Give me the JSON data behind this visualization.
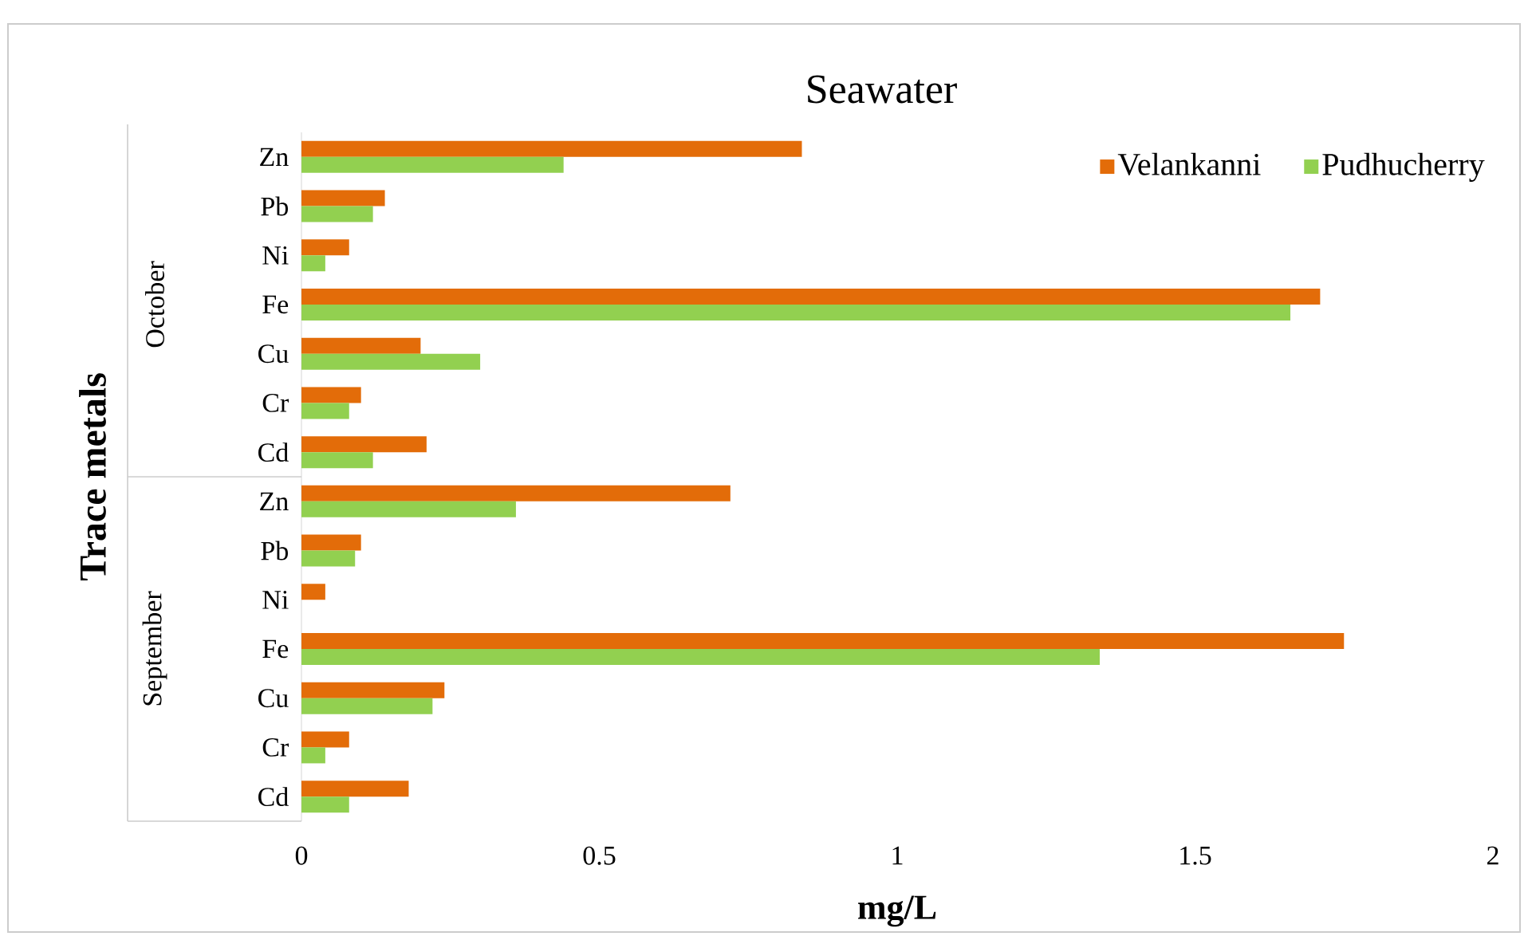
{
  "chart_data": {
    "type": "bar",
    "orientation": "horizontal",
    "title": "Seawater",
    "xlabel": "mg/L",
    "ylabel": "Trace metals",
    "categories": [
      "Zn",
      "Pb",
      "Ni",
      "Fe",
      "Cu",
      "Cr",
      "Cd",
      "Zn",
      "Pb",
      "Ni",
      "Fe",
      "Cu",
      "Cr",
      "Cd"
    ],
    "annotations": [
      "October",
      "September"
    ],
    "series": [
      {
        "name": "Velankanni",
        "color": "#e36c09",
        "values": [
          0.84,
          0.14,
          0.08,
          1.71,
          0.2,
          0.1,
          0.21,
          0.72,
          0.1,
          0.04,
          1.75,
          0.24,
          0.08,
          0.18
        ]
      },
      {
        "name": "Pudhucherry",
        "color": "#92d050",
        "values": [
          0.44,
          0.12,
          0.04,
          1.66,
          0.3,
          0.08,
          0.12,
          0.36,
          0.09,
          null,
          1.34,
          0.22,
          0.04,
          0.08
        ]
      }
    ],
    "xlim": [
      0,
      2
    ],
    "xticks": [
      0,
      0.5,
      1,
      1.5,
      2
    ],
    "legend": "top right"
  }
}
